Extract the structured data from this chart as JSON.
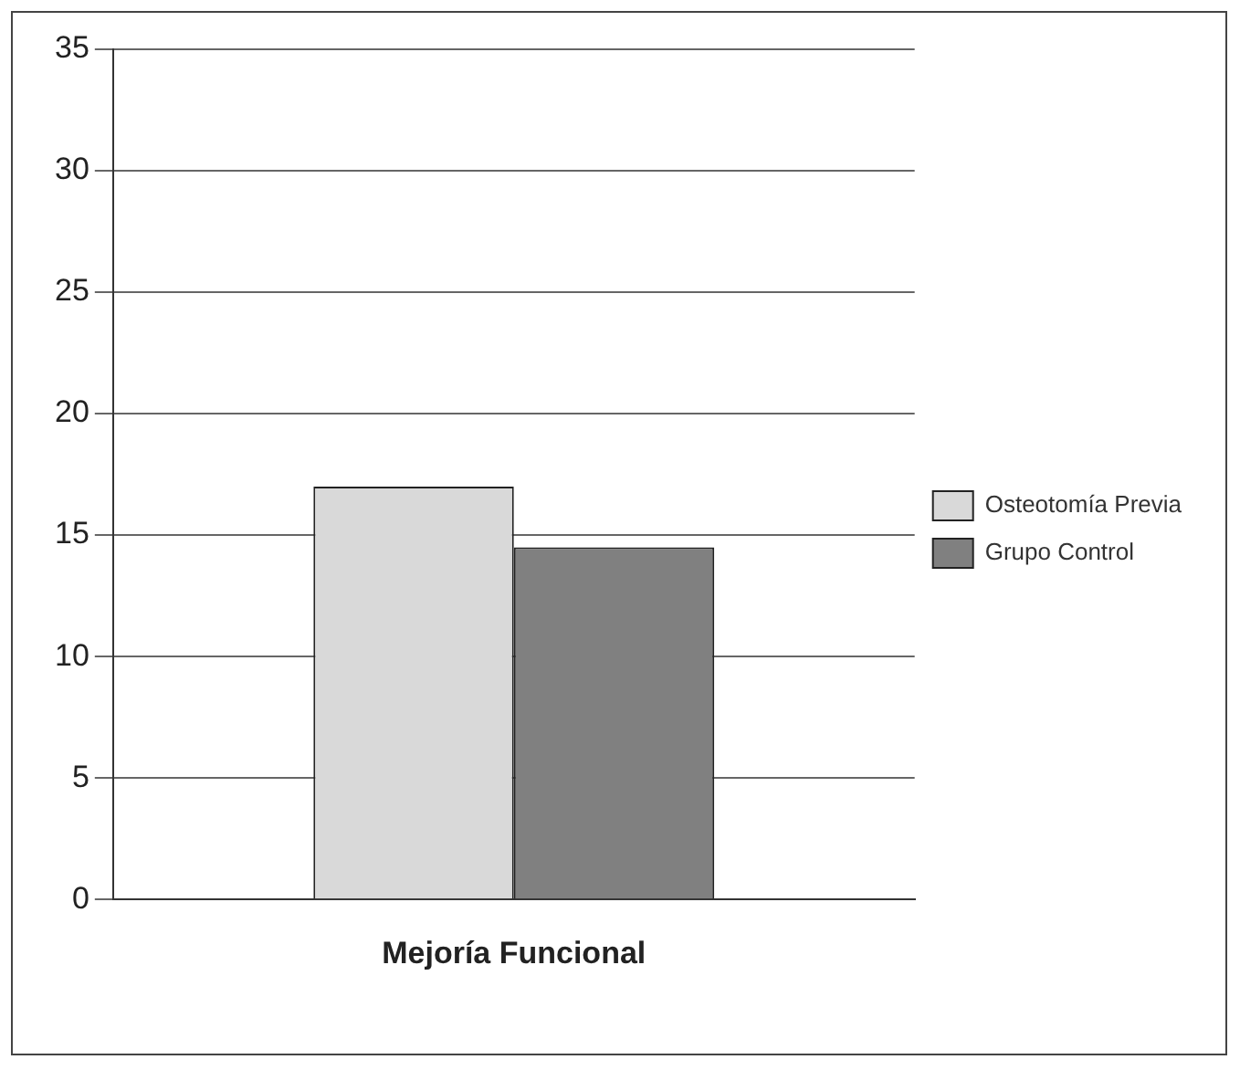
{
  "chart_data": {
    "type": "bar",
    "categories": [
      "Mejoría Funcional"
    ],
    "series": [
      {
        "name": "Osteotomía Previa",
        "color": "#d9d9d9",
        "values": [
          17
        ]
      },
      {
        "name": "Grupo Control",
        "color": "#808080",
        "values": [
          14.5
        ]
      }
    ],
    "ylim": [
      0,
      35
    ],
    "yticks": [
      0,
      5,
      10,
      15,
      20,
      25,
      30,
      35
    ],
    "grid": "y",
    "legend": "right"
  }
}
